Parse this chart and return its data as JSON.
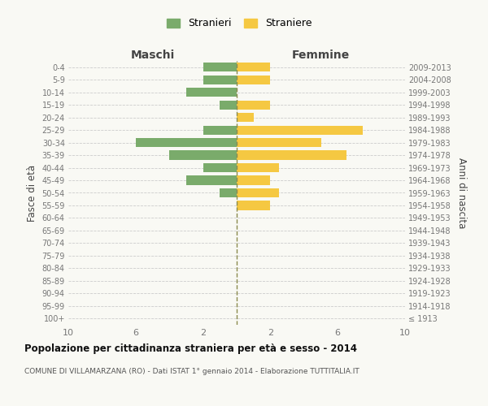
{
  "age_groups": [
    "100+",
    "95-99",
    "90-94",
    "85-89",
    "80-84",
    "75-79",
    "70-74",
    "65-69",
    "60-64",
    "55-59",
    "50-54",
    "45-49",
    "40-44",
    "35-39",
    "30-34",
    "25-29",
    "20-24",
    "15-19",
    "10-14",
    "5-9",
    "0-4"
  ],
  "birth_years": [
    "≤ 1913",
    "1914-1918",
    "1919-1923",
    "1924-1928",
    "1929-1933",
    "1934-1938",
    "1939-1943",
    "1944-1948",
    "1949-1953",
    "1954-1958",
    "1959-1963",
    "1964-1968",
    "1969-1973",
    "1974-1978",
    "1979-1983",
    "1984-1988",
    "1989-1993",
    "1994-1998",
    "1999-2003",
    "2004-2008",
    "2009-2013"
  ],
  "maschi": [
    0,
    0,
    0,
    0,
    0,
    0,
    0,
    0,
    0,
    0,
    1,
    3,
    2,
    4,
    6,
    2,
    0,
    1,
    3,
    2,
    2
  ],
  "femmine": [
    0,
    0,
    0,
    0,
    0,
    0,
    0,
    0,
    0,
    2,
    2.5,
    2,
    2.5,
    6.5,
    5,
    7.5,
    1,
    2,
    0,
    2,
    2
  ],
  "male_color": "#7aab6b",
  "female_color": "#f5c842",
  "background_color": "#f9f9f4",
  "grid_color": "#cccccc",
  "center_line_color": "#8b8b4e",
  "xlim": 10,
  "title": "Popolazione per cittadinanza straniera per età e sesso - 2014",
  "subtitle": "COMUNE DI VILLAMARZANA (RO) - Dati ISTAT 1° gennaio 2014 - Elaborazione TUTTITALIA.IT",
  "ylabel_left": "Fasce di età",
  "ylabel_right": "Anni di nascita",
  "header_left": "Maschi",
  "header_right": "Femmine",
  "legend_stranieri": "Stranieri",
  "legend_straniere": "Straniere"
}
